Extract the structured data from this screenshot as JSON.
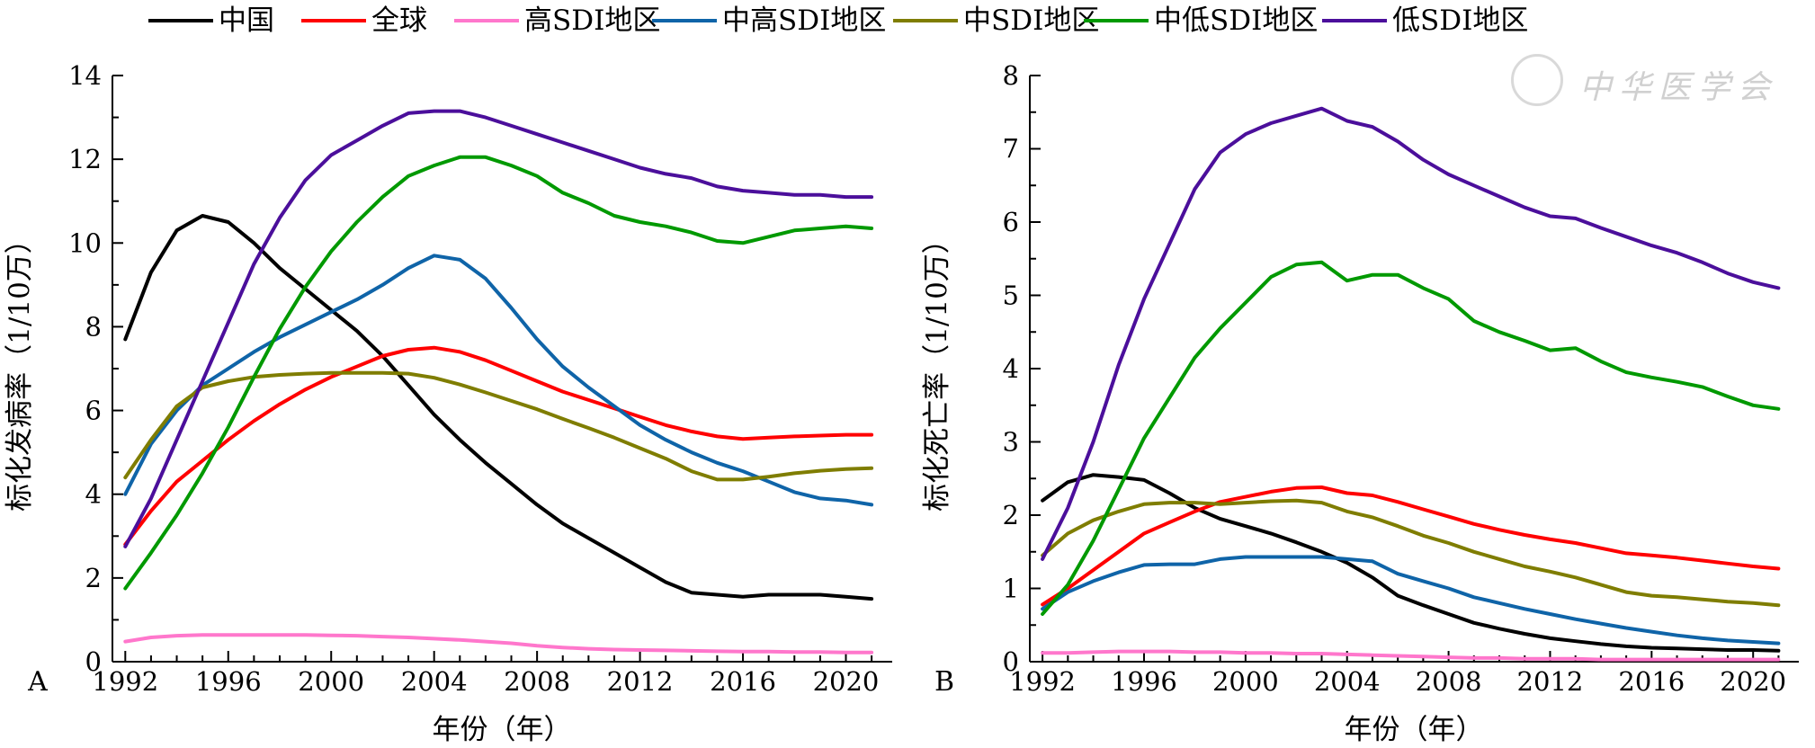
{
  "legend": {
    "placement": "top",
    "items": [
      {
        "name": "中国",
        "color": "#000000"
      },
      {
        "name": "全球",
        "color": "#ff0000"
      },
      {
        "name": "高SDI地区",
        "color": "#ff77cc"
      },
      {
        "name": "中高SDI地区",
        "color": "#0f64a8"
      },
      {
        "name": "中SDI地区",
        "color": "#7f7d00"
      },
      {
        "name": "中低SDI地区",
        "color": "#009900"
      },
      {
        "name": "低SDI地区",
        "color": "#4b0f9b"
      }
    ]
  },
  "watermark": {
    "text": "中华医学会"
  },
  "chart_data": [
    {
      "type": "line",
      "panel_label": "A",
      "title": "",
      "xlabel": "年份（年）",
      "ylabel": "标化发病率（1/10万）",
      "xlim": [
        1991.5,
        2021.8
      ],
      "ylim": [
        0,
        14
      ],
      "x_ticks": [
        1992,
        1996,
        2000,
        2004,
        2008,
        2012,
        2016,
        2020
      ],
      "y_ticks": [
        0,
        2,
        4,
        6,
        8,
        10,
        12,
        14
      ],
      "grid": false,
      "x": [
        1992,
        1993,
        1994,
        1995,
        1996,
        1997,
        1998,
        1999,
        2000,
        2001,
        2002,
        2003,
        2004,
        2005,
        2006,
        2007,
        2008,
        2009,
        2010,
        2011,
        2012,
        2013,
        2014,
        2015,
        2016,
        2017,
        2018,
        2019,
        2020,
        2021
      ],
      "series": [
        {
          "name": "中国",
          "values": [
            7.7,
            9.3,
            10.3,
            10.65,
            10.5,
            10.0,
            9.4,
            8.9,
            8.4,
            7.9,
            7.3,
            6.6,
            5.9,
            5.3,
            4.75,
            4.25,
            3.75,
            3.3,
            2.95,
            2.6,
            2.25,
            1.9,
            1.65,
            1.6,
            1.55,
            1.6,
            1.6,
            1.6,
            1.55,
            1.5
          ]
        },
        {
          "name": "全球",
          "values": [
            2.8,
            3.6,
            4.3,
            4.8,
            5.3,
            5.75,
            6.15,
            6.5,
            6.8,
            7.05,
            7.3,
            7.45,
            7.5,
            7.4,
            7.2,
            6.95,
            6.7,
            6.45,
            6.25,
            6.05,
            5.85,
            5.65,
            5.5,
            5.38,
            5.32,
            5.35,
            5.38,
            5.4,
            5.42,
            5.42
          ]
        },
        {
          "name": "高SDI地区",
          "values": [
            0.48,
            0.58,
            0.62,
            0.64,
            0.64,
            0.64,
            0.64,
            0.64,
            0.63,
            0.62,
            0.6,
            0.58,
            0.55,
            0.52,
            0.48,
            0.44,
            0.38,
            0.34,
            0.31,
            0.29,
            0.28,
            0.27,
            0.26,
            0.25,
            0.24,
            0.24,
            0.23,
            0.23,
            0.22,
            0.22
          ]
        },
        {
          "name": "中高SDI地区",
          "values": [
            4.0,
            5.2,
            6.0,
            6.6,
            7.0,
            7.4,
            7.75,
            8.05,
            8.35,
            8.65,
            9.0,
            9.4,
            9.7,
            9.6,
            9.15,
            8.45,
            7.7,
            7.05,
            6.55,
            6.1,
            5.65,
            5.3,
            5.0,
            4.75,
            4.55,
            4.3,
            4.05,
            3.9,
            3.85,
            3.75
          ]
        },
        {
          "name": "中SDI地区",
          "values": [
            4.4,
            5.3,
            6.1,
            6.55,
            6.7,
            6.8,
            6.85,
            6.88,
            6.9,
            6.9,
            6.9,
            6.88,
            6.78,
            6.62,
            6.43,
            6.23,
            6.03,
            5.8,
            5.58,
            5.35,
            5.1,
            4.85,
            4.55,
            4.35,
            4.35,
            4.42,
            4.5,
            4.56,
            4.6,
            4.62
          ]
        },
        {
          "name": "中低SDI地区",
          "values": [
            1.75,
            2.6,
            3.5,
            4.5,
            5.6,
            6.8,
            7.95,
            8.95,
            9.8,
            10.5,
            11.1,
            11.6,
            11.85,
            12.05,
            12.05,
            11.85,
            11.6,
            11.2,
            10.95,
            10.65,
            10.5,
            10.4,
            10.25,
            10.05,
            10.0,
            10.15,
            10.3,
            10.35,
            10.4,
            10.35
          ]
        },
        {
          "name": "低SDI地区",
          "values": [
            2.75,
            3.9,
            5.3,
            6.7,
            8.1,
            9.5,
            10.6,
            11.5,
            12.1,
            12.45,
            12.8,
            13.1,
            13.15,
            13.15,
            13.0,
            12.8,
            12.6,
            12.4,
            12.2,
            12.0,
            11.8,
            11.65,
            11.55,
            11.35,
            11.25,
            11.2,
            11.15,
            11.15,
            11.1,
            11.1
          ]
        }
      ]
    },
    {
      "type": "line",
      "panel_label": "B",
      "title": "",
      "xlabel": "年份（年）",
      "ylabel": "标化死亡率（1/10万）",
      "xlim": [
        1991.5,
        2021.8
      ],
      "ylim": [
        0,
        8
      ],
      "x_ticks": [
        1992,
        1996,
        2000,
        2004,
        2008,
        2012,
        2016,
        2020
      ],
      "y_ticks": [
        0,
        1,
        2,
        3,
        4,
        5,
        6,
        7,
        8
      ],
      "grid": false,
      "x": [
        1992,
        1993,
        1994,
        1995,
        1996,
        1997,
        1998,
        1999,
        2000,
        2001,
        2002,
        2003,
        2004,
        2005,
        2006,
        2007,
        2008,
        2009,
        2010,
        2011,
        2012,
        2013,
        2014,
        2015,
        2016,
        2017,
        2018,
        2019,
        2020,
        2021
      ],
      "series": [
        {
          "name": "中国",
          "values": [
            2.2,
            2.45,
            2.55,
            2.52,
            2.48,
            2.3,
            2.1,
            1.95,
            1.85,
            1.75,
            1.63,
            1.5,
            1.35,
            1.15,
            0.9,
            0.77,
            0.65,
            0.53,
            0.45,
            0.38,
            0.32,
            0.28,
            0.24,
            0.21,
            0.19,
            0.18,
            0.17,
            0.16,
            0.16,
            0.15
          ]
        },
        {
          "name": "全球",
          "values": [
            0.78,
            1.0,
            1.25,
            1.5,
            1.75,
            1.9,
            2.05,
            2.18,
            2.25,
            2.32,
            2.37,
            2.38,
            2.3,
            2.27,
            2.18,
            2.08,
            1.98,
            1.88,
            1.8,
            1.73,
            1.67,
            1.62,
            1.55,
            1.48,
            1.45,
            1.42,
            1.38,
            1.34,
            1.3,
            1.27
          ]
        },
        {
          "name": "高SDI地区",
          "values": [
            0.12,
            0.12,
            0.13,
            0.14,
            0.14,
            0.14,
            0.13,
            0.13,
            0.12,
            0.12,
            0.11,
            0.11,
            0.1,
            0.09,
            0.08,
            0.07,
            0.06,
            0.05,
            0.05,
            0.04,
            0.04,
            0.04,
            0.03,
            0.03,
            0.03,
            0.03,
            0.03,
            0.03,
            0.03,
            0.03
          ]
        },
        {
          "name": "中高SDI地区",
          "values": [
            0.72,
            0.95,
            1.1,
            1.22,
            1.32,
            1.33,
            1.33,
            1.4,
            1.43,
            1.43,
            1.43,
            1.43,
            1.4,
            1.37,
            1.2,
            1.1,
            1.0,
            0.88,
            0.8,
            0.72,
            0.65,
            0.58,
            0.52,
            0.46,
            0.41,
            0.36,
            0.32,
            0.29,
            0.27,
            0.25
          ]
        },
        {
          "name": "中SDI地区",
          "values": [
            1.45,
            1.75,
            1.93,
            2.05,
            2.15,
            2.17,
            2.17,
            2.15,
            2.17,
            2.19,
            2.2,
            2.17,
            2.05,
            1.97,
            1.85,
            1.72,
            1.62,
            1.5,
            1.4,
            1.3,
            1.23,
            1.15,
            1.05,
            0.95,
            0.9,
            0.88,
            0.85,
            0.82,
            0.8,
            0.77
          ]
        },
        {
          "name": "中低SDI地区",
          "values": [
            0.65,
            1.05,
            1.65,
            2.35,
            3.05,
            3.6,
            4.15,
            4.55,
            4.9,
            5.25,
            5.42,
            5.45,
            5.2,
            5.28,
            5.28,
            5.1,
            4.95,
            4.65,
            4.5,
            4.38,
            4.25,
            4.28,
            4.1,
            3.95,
            3.88,
            3.82,
            3.75,
            3.62,
            3.5,
            3.45
          ]
        },
        {
          "name": "低SDI地区",
          "values": [
            1.4,
            2.1,
            3.0,
            4.05,
            4.95,
            5.7,
            6.45,
            6.95,
            7.2,
            7.35,
            7.45,
            7.55,
            7.38,
            7.3,
            7.1,
            6.85,
            6.65,
            6.5,
            6.35,
            6.2,
            6.08,
            6.05,
            5.92,
            5.8,
            5.68,
            5.58,
            5.45,
            5.3,
            5.18,
            5.1
          ]
        }
      ]
    }
  ]
}
